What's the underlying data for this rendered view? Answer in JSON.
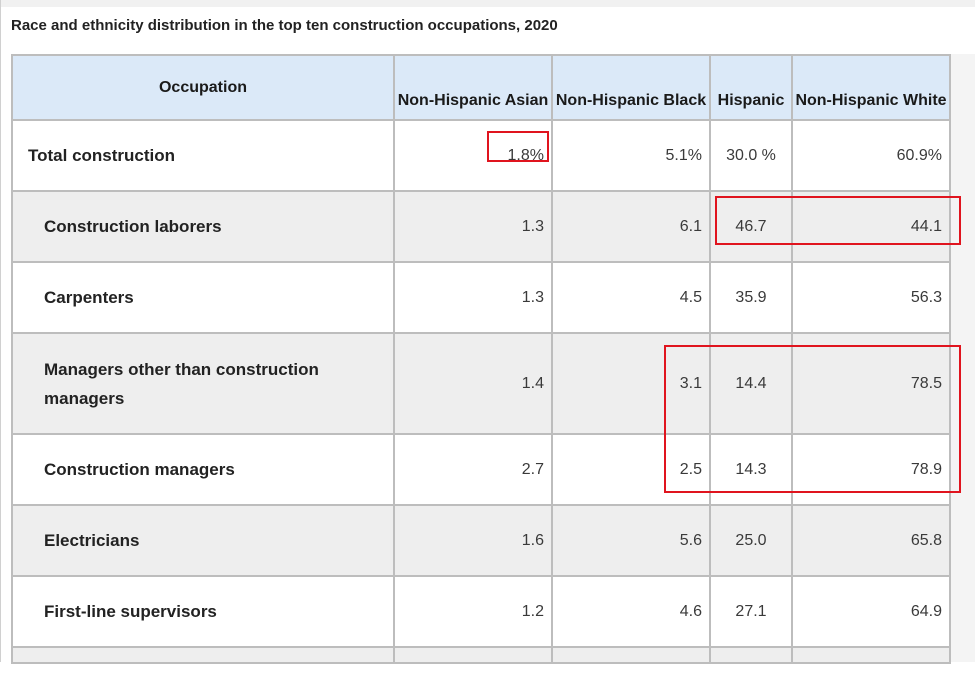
{
  "chart_data": {
    "type": "table",
    "title": "Race and ethnicity distribution in the top ten construction occupations, 2020",
    "columns": [
      "Occupation",
      "Non-Hispanic Asian",
      "Non-Hispanic Black",
      "Hispanic",
      "Non-Hispanic White"
    ],
    "rows": [
      {
        "label": "Total construction",
        "values": [
          "1.8%",
          "5.1%",
          "30.0 %",
          "60.9%"
        ]
      },
      {
        "label": "Construction laborers",
        "values": [
          "1.3",
          "6.1",
          "46.7",
          "44.1"
        ]
      },
      {
        "label": "Carpenters",
        "values": [
          "1.3",
          "4.5",
          "35.9",
          "56.3"
        ]
      },
      {
        "label": "Managers other than construction managers",
        "values": [
          "1.4",
          "3.1",
          "14.4",
          "78.5"
        ]
      },
      {
        "label": "Construction managers",
        "values": [
          "2.7",
          "2.5",
          "14.3",
          "78.9"
        ]
      },
      {
        "label": "Electricians",
        "values": [
          "1.6",
          "5.6",
          "25.0",
          "65.8"
        ]
      },
      {
        "label": "First-line supervisors",
        "values": [
          "1.2",
          "4.6",
          "27.1",
          "64.9"
        ]
      }
    ],
    "highlight_color": "#e0141e"
  }
}
